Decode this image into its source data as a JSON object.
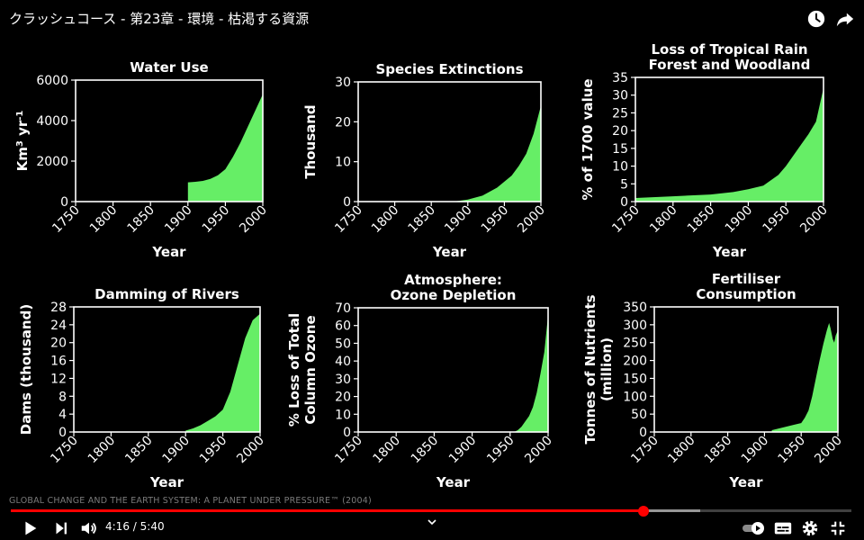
{
  "header": {
    "video_title": "クラッシュコース - 第23章 - 環境 - 枯渇する資源",
    "watch_later_icon": "clock-icon",
    "share_icon": "share-arrow-icon"
  },
  "caption": "GLOBAL CHANGE AND THE EARTH SYSTEM: A PLANET UNDER PRESSURE™ (2004)",
  "player": {
    "time_current": "4:16",
    "time_separator": "/",
    "time_total": "5:40",
    "progress_fraction": 0.753,
    "buffered_fraction": 0.82,
    "icons": [
      "play-icon",
      "next-icon",
      "volume-icon",
      "chevron-down-icon",
      "autoplay-toggle-icon",
      "subtitles-icon",
      "settings-icon",
      "exit-fullscreen-icon"
    ],
    "played_color": "#ff0000"
  },
  "fill_color": "#66ee66",
  "chart_data": [
    {
      "type": "area",
      "title": [
        "Water Use"
      ],
      "xlabel": "Year",
      "ylabel": "Km³ yr⁻¹",
      "ylabel_parts": [
        "Km",
        "3",
        " yr",
        "-1"
      ],
      "xlim": [
        1750,
        2000
      ],
      "ylim": [
        0,
        6000
      ],
      "xticks": [
        1750,
        1800,
        1850,
        1900,
        1950,
        2000
      ],
      "yticks": [
        0,
        2000,
        4000,
        6000
      ],
      "x": [
        1900,
        1910,
        1920,
        1930,
        1940,
        1950,
        1960,
        1970,
        1980,
        1990,
        2000
      ],
      "y": [
        950,
        980,
        1020,
        1120,
        1300,
        1600,
        2200,
        2900,
        3700,
        4500,
        5300
      ]
    },
    {
      "type": "area",
      "title": [
        "Species Extinctions"
      ],
      "xlabel": "Year",
      "ylabel": "Thousand",
      "xlim": [
        1750,
        2000
      ],
      "ylim": [
        0,
        30
      ],
      "xticks": [
        1750,
        1800,
        1850,
        1900,
        1950,
        2000
      ],
      "yticks": [
        0,
        10,
        20,
        30
      ],
      "x": [
        1750,
        1800,
        1850,
        1880,
        1900,
        1920,
        1940,
        1960,
        1970,
        1980,
        1990,
        2000
      ],
      "y": [
        0,
        0,
        0,
        0,
        0.5,
        1.5,
        3.5,
        6.5,
        9,
        12,
        17,
        24
      ]
    },
    {
      "type": "area",
      "title": [
        "Loss of Tropical Rain",
        "Forest and Woodland"
      ],
      "xlabel": "Year",
      "ylabel": "% of 1700 value",
      "xlim": [
        1750,
        2000
      ],
      "ylim": [
        0,
        35
      ],
      "xticks": [
        1750,
        1800,
        1850,
        1900,
        1950,
        2000
      ],
      "yticks": [
        0,
        5,
        10,
        15,
        20,
        25,
        30,
        35
      ],
      "x": [
        1750,
        1800,
        1850,
        1880,
        1900,
        1920,
        1940,
        1950,
        1960,
        1970,
        1980,
        1990,
        2000
      ],
      "y": [
        1,
        1.5,
        2,
        2.7,
        3.5,
        4.5,
        7.5,
        10,
        13,
        16,
        19,
        22.5,
        32
      ]
    },
    {
      "type": "area",
      "title": [
        "Damming of Rivers"
      ],
      "xlabel": "Year",
      "ylabel": "Dams (thousand)",
      "xlim": [
        1750,
        2000
      ],
      "ylim": [
        0,
        28
      ],
      "xticks": [
        1750,
        1800,
        1850,
        1900,
        1950,
        2000
      ],
      "yticks": [
        0,
        4,
        8,
        12,
        16,
        20,
        24,
        28
      ],
      "x": [
        1900,
        1910,
        1920,
        1930,
        1940,
        1950,
        1960,
        1970,
        1980,
        1990,
        2000
      ],
      "y": [
        0.3,
        0.8,
        1.5,
        2.5,
        3.5,
        5,
        9,
        15,
        21,
        25,
        26.5
      ]
    },
    {
      "type": "area",
      "title": [
        "Atmosphere:",
        "Ozone Depletion"
      ],
      "xlabel": "Year",
      "ylabel": "% Loss of Total Column Ozone",
      "ylabel_lines": [
        "% Loss of Total",
        "Column Ozone"
      ],
      "xlim": [
        1750,
        2000
      ],
      "ylim": [
        0,
        70
      ],
      "xticks": [
        1750,
        1800,
        1850,
        1900,
        1950,
        2000
      ],
      "yticks": [
        0,
        10,
        20,
        30,
        40,
        50,
        60,
        70
      ],
      "x": [
        1955,
        1960,
        1965,
        1970,
        1975,
        1980,
        1985,
        1990,
        1995,
        2000
      ],
      "y": [
        0,
        1,
        3,
        6,
        9,
        14,
        22,
        33,
        45,
        66
      ]
    },
    {
      "type": "area",
      "title": [
        "Fertiliser",
        "Consumption"
      ],
      "xlabel": "Year",
      "ylabel": "Tonnes of Nutrients (million)",
      "ylabel_lines": [
        "Tonnes of Nutrients",
        "(million)"
      ],
      "xlim": [
        1750,
        2000
      ],
      "ylim": [
        0,
        350
      ],
      "xticks": [
        1750,
        1800,
        1850,
        1900,
        1950,
        2000
      ],
      "yticks": [
        0,
        50,
        100,
        150,
        200,
        250,
        300,
        350
      ],
      "x": [
        1910,
        1920,
        1930,
        1940,
        1950,
        1955,
        1960,
        1965,
        1970,
        1975,
        1980,
        1985,
        1988,
        1990,
        1993,
        1995,
        1997,
        2000
      ],
      "y": [
        5,
        10,
        15,
        20,
        25,
        40,
        60,
        100,
        150,
        200,
        245,
        285,
        305,
        290,
        260,
        250,
        270,
        285
      ]
    }
  ]
}
